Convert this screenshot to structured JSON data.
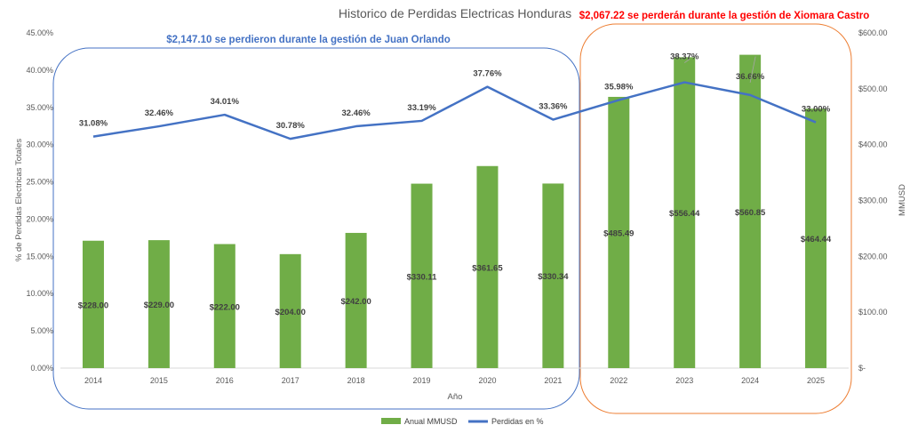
{
  "chart_data": {
    "type": "bar",
    "title": "Historico de Perdidas Electricas Honduras",
    "xlabel": "Año",
    "ylabel_left": "% de Perdidas Electricas Totales",
    "ylabel_right": "MMUSD",
    "categories": [
      "2014",
      "2015",
      "2016",
      "2017",
      "2018",
      "2019",
      "2020",
      "2021",
      "2022",
      "2023",
      "2024",
      "2025"
    ],
    "left_axis": {
      "min": 0,
      "max": 45,
      "step": 5,
      "tick_labels": [
        "0.00%",
        "5.00%",
        "10.00%",
        "15.00%",
        "20.00%",
        "25.00%",
        "30.00%",
        "35.00%",
        "40.00%",
        "45.00%"
      ]
    },
    "right_axis": {
      "min": 0,
      "max": 600,
      "step": 100,
      "tick_labels": [
        "$-",
        "$100.00",
        "$200.00",
        "$300.00",
        "$400.00",
        "$500.00",
        "$600.00"
      ]
    },
    "series": [
      {
        "name": "Anual MMUSD",
        "kind": "bar",
        "axis": "right",
        "color": "#70AD47",
        "values": [
          228.0,
          229.0,
          222.0,
          204.0,
          242.0,
          330.11,
          361.65,
          330.34,
          485.49,
          556.44,
          560.85,
          464.44
        ],
        "labels": [
          "$228.00",
          "$229.00",
          "$222.00",
          "$204.00",
          "$242.00",
          "$330.11",
          "$361.65",
          "$330.34",
          "$485.49",
          "$556.44",
          "$560.85",
          "$464.44"
        ]
      },
      {
        "name": "Perdidas en %",
        "kind": "line",
        "axis": "left",
        "color": "#4472C4",
        "values": [
          31.08,
          32.46,
          34.01,
          30.78,
          32.46,
          33.19,
          37.76,
          33.36,
          35.98,
          38.37,
          36.66,
          33.0
        ],
        "labels": [
          "31.08%",
          "32.46%",
          "34.01%",
          "30.78%",
          "32.46%",
          "33.19%",
          "37.76%",
          "33.36%",
          "35.98%",
          "38.37%",
          "36.66%",
          "33.00%"
        ]
      }
    ],
    "annotations": [
      {
        "text": "$2,147.10 se perdieron durante la gestión de Juan Orlando",
        "color": "#4472C4",
        "group": "2014-2021"
      },
      {
        "text": "$2,067.22 se perderán durante la gestión de Xiomara Castro",
        "color": "#FF0000",
        "group": "2022-2025"
      }
    ],
    "legend_position": "bottom",
    "grid": false
  }
}
